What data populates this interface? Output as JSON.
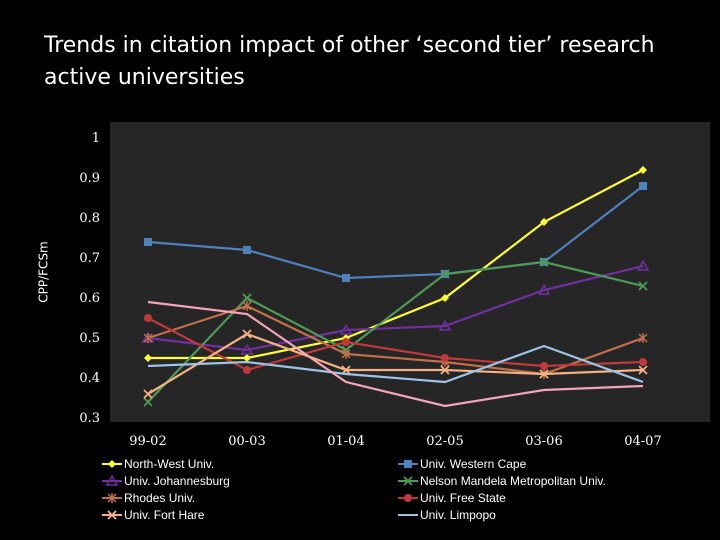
{
  "slide": {
    "title": "Trends in citation impact of other ‘second tier’ research active universities"
  },
  "chart_data": {
    "type": "line",
    "title": "",
    "xlabel": "",
    "ylabel": "CPP/FCSm",
    "categories": [
      "99-02",
      "00-03",
      "01-04",
      "02-05",
      "03-06",
      "04-07"
    ],
    "yticks": [
      "0.3",
      "0.4",
      "0.5",
      "0.6",
      "0.7",
      "0.8",
      "0.9",
      "1"
    ],
    "ylim": [
      0.3,
      1.0
    ],
    "grid": false,
    "legend_position": "bottom",
    "series": [
      {
        "name": "North-West Univ.",
        "color": "#ffff33",
        "marker": "diamond",
        "values": [
          0.45,
          0.45,
          0.5,
          0.6,
          0.79,
          0.92
        ]
      },
      {
        "name": "Univ. Western Cape",
        "color": "#4f81bd",
        "marker": "square",
        "values": [
          0.74,
          0.72,
          0.65,
          0.66,
          0.69,
          0.88
        ]
      },
      {
        "name": "Univ. Johannesburg",
        "color": "#7030a0",
        "marker": "triangle",
        "values": [
          0.5,
          0.47,
          0.52,
          0.53,
          0.62,
          0.68
        ]
      },
      {
        "name": "Nelson Mandela Metropolitan Univ.",
        "color": "#4e9a56",
        "marker": "x",
        "values": [
          0.34,
          0.6,
          0.47,
          0.66,
          0.69,
          0.63
        ]
      },
      {
        "name": "Rhodes Univ.",
        "color": "#c0704a",
        "marker": "star",
        "values": [
          0.5,
          0.58,
          0.46,
          0.44,
          0.41,
          0.5
        ]
      },
      {
        "name": "Univ. Free State",
        "color": "#c0393b",
        "marker": "circle",
        "values": [
          0.55,
          0.42,
          0.49,
          0.45,
          0.43,
          0.44
        ]
      },
      {
        "name": "Univ. Fort Hare",
        "color": "#f4b183",
        "marker": "x",
        "values": [
          0.36,
          0.51,
          0.42,
          0.42,
          0.41,
          0.42
        ]
      },
      {
        "name": "Univ. Limpopo",
        "color": "#9dc3e6",
        "marker": "none",
        "values": [
          0.43,
          0.44,
          0.41,
          0.39,
          0.48,
          0.39
        ]
      },
      {
        "name": "",
        "color": "#f4a6b6",
        "marker": "none",
        "values": [
          0.59,
          0.56,
          0.39,
          0.33,
          0.37,
          0.38
        ]
      }
    ]
  }
}
